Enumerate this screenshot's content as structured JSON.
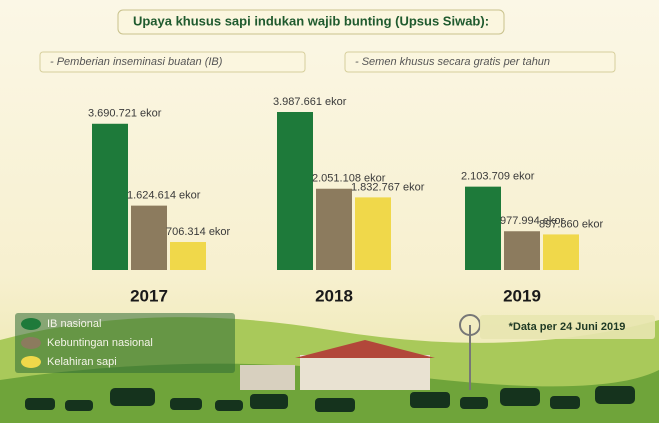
{
  "chart_data": {
    "type": "bar",
    "title": "Upaya khusus sapi indukan wajib bunting (Upsus Siwab):",
    "subtitles": [
      "- Pemberian inseminasi buatan (IB)",
      "- Semen khusus secara gratis per tahun"
    ],
    "annotation": "*Data per 24 Juni 2019",
    "categories": [
      "2017",
      "2018",
      "2019"
    ],
    "legend": "bottom-left",
    "series": [
      {
        "name": "IB nasional",
        "color": "#1e7a3a",
        "values": [
          3690721,
          3987661,
          2103709
        ],
        "value_labels": [
          "3.690.721 ekor",
          "3.987.661 ekor",
          "2.103.709 ekor"
        ]
      },
      {
        "name": "Kebuntingan nasional",
        "color": "#8c7b5e",
        "values": [
          1624614,
          2051108,
          977994
        ],
        "value_labels": [
          "1.624.614 ekor",
          "2.051.108 ekor",
          "977.994 ekor"
        ]
      },
      {
        "name": "Kelahiran sapi",
        "color": "#f0d84a",
        "values": [
          706314,
          1832767,
          897860
        ],
        "value_labels": [
          "706.314 ekor",
          "1.832.767 ekor",
          "897.860 ekor"
        ]
      }
    ]
  }
}
